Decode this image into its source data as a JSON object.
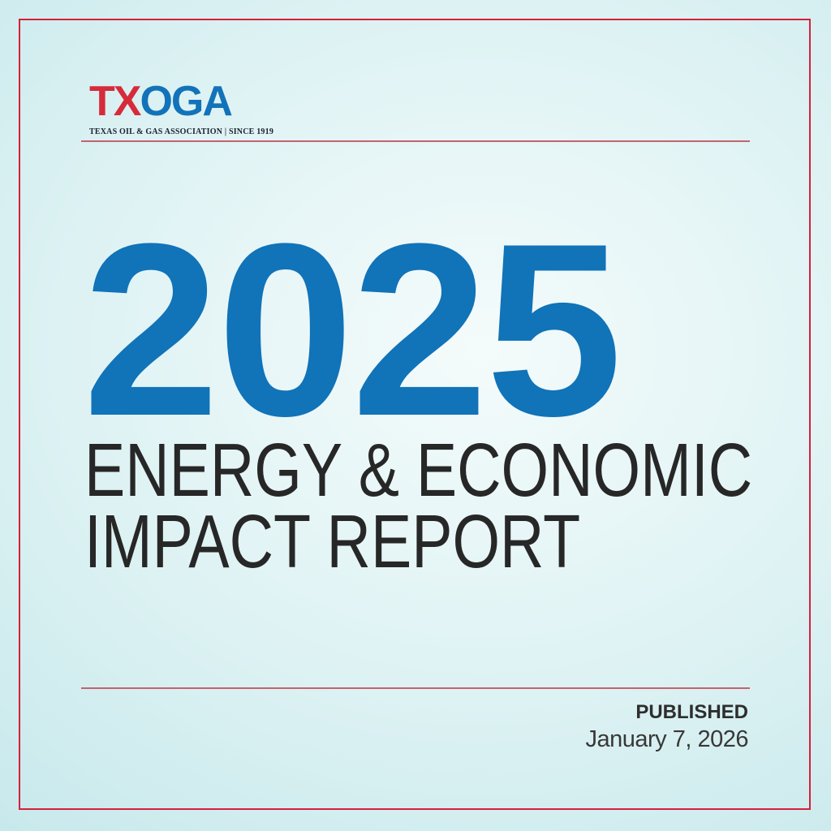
{
  "page": {
    "type": "report-cover"
  },
  "logo": {
    "brand_tx": "TX",
    "brand_oga": "OGA",
    "tagline": "TEXAS OIL & GAS ASSOCIATION | SINCE 1919"
  },
  "cover": {
    "year": "2025",
    "title_line1": "ENERGY & ECONOMIC",
    "title_line2": "IMPACT REPORT"
  },
  "footer": {
    "published_label": "PUBLISHED",
    "published_date": "January 7, 2026"
  },
  "colors": {
    "brand_red": "#d62b3a",
    "brand_blue": "#1273b9",
    "frame_red": "#d5203c",
    "rule_rose": "#c4626f",
    "year_blue": "#1173b8",
    "title_dark": "#272727",
    "tagline_dark": "#1a2030",
    "background_center": "#f4fbfb",
    "background_edge": "#c8e9ec"
  }
}
